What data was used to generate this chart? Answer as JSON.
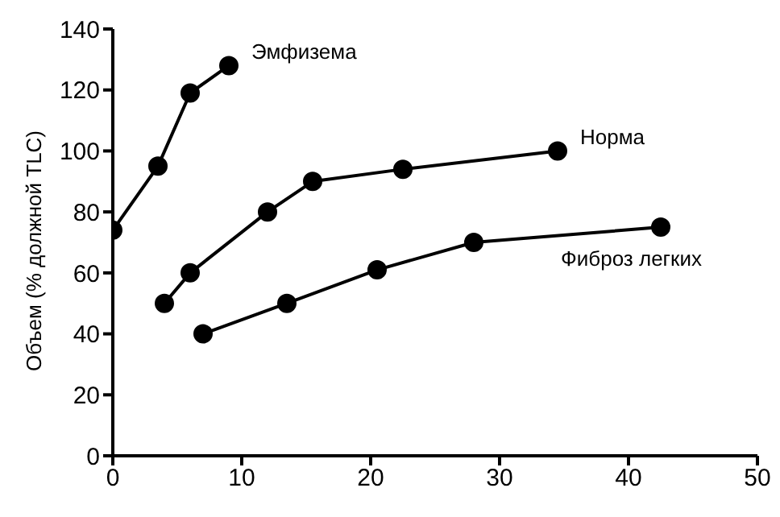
{
  "chart_data": {
    "type": "line",
    "ylabel": "Объем (% должной TLC)",
    "xlim": [
      0,
      50
    ],
    "xticks": [
      0,
      10,
      20,
      30,
      40,
      50
    ],
    "ylim": [
      0,
      140
    ],
    "yticks": [
      0,
      20,
      40,
      60,
      80,
      100,
      120,
      140
    ],
    "grid": false,
    "legend": false,
    "marker": "circle",
    "line_style": "solid",
    "series": [
      {
        "name": "Эмфизема",
        "color": "#000000",
        "x": [
          0,
          3.5,
          6,
          9
        ],
        "values": [
          74,
          95,
          119,
          128
        ]
      },
      {
        "name": "Норма",
        "color": "#000000",
        "x": [
          4,
          6,
          12,
          15.5,
          22.5,
          34.5
        ],
        "values": [
          50,
          60,
          80,
          90,
          94,
          100
        ]
      },
      {
        "name": "Фиброз легких",
        "color": "#000000",
        "x": [
          7,
          13.5,
          20.5,
          28,
          42.5
        ],
        "values": [
          40,
          50,
          61,
          70,
          75
        ]
      }
    ]
  }
}
